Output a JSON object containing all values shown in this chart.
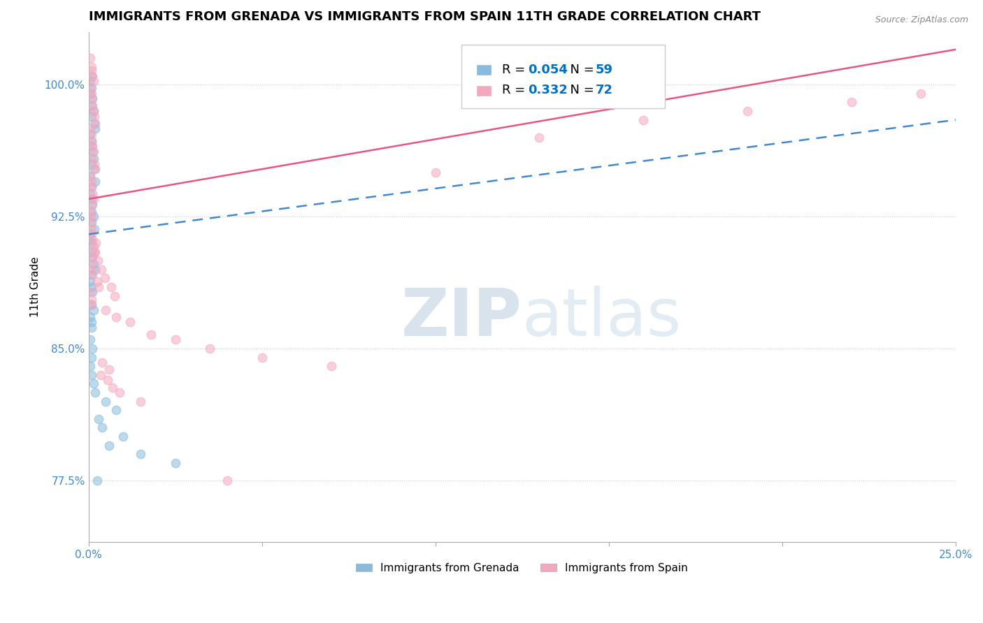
{
  "title": "IMMIGRANTS FROM GRENADA VS IMMIGRANTS FROM SPAIN 11TH GRADE CORRELATION CHART",
  "source_text": "Source: ZipAtlas.com",
  "ylabel": "11th Grade",
  "xlim": [
    0.0,
    25.0
  ],
  "ylim": [
    74.0,
    103.0
  ],
  "xticks": [
    0.0,
    5.0,
    10.0,
    15.0,
    20.0,
    25.0
  ],
  "xtick_labels": [
    "0.0%",
    "",
    "",
    "",
    "",
    "25.0%"
  ],
  "ytick_values": [
    77.5,
    85.0,
    92.5,
    100.0
  ],
  "ytick_labels": [
    "77.5%",
    "85.0%",
    "92.5%",
    "100.0%"
  ],
  "legend_entries": [
    {
      "label": "Immigrants from Grenada",
      "color": "#a8c8e8",
      "R": "0.054",
      "N": "59"
    },
    {
      "label": "Immigrants from Spain",
      "color": "#f4a8be",
      "R": "0.332",
      "N": "72"
    }
  ],
  "grenada_x": [
    0.05,
    0.08,
    0.1,
    0.05,
    0.12,
    0.08,
    0.15,
    0.1,
    0.18,
    0.2,
    0.05,
    0.08,
    0.1,
    0.12,
    0.15,
    0.08,
    0.18,
    0.05,
    0.2,
    0.1,
    0.05,
    0.08,
    0.12,
    0.1,
    0.15,
    0.08,
    0.18,
    0.05,
    0.05,
    0.08,
    0.1,
    0.12,
    0.15,
    0.2,
    0.08,
    0.05,
    0.1,
    0.12,
    0.08,
    0.15,
    0.05,
    0.1,
    0.08,
    0.05,
    0.12,
    0.08,
    0.05,
    0.1,
    0.15,
    0.2,
    0.5,
    0.8,
    0.3,
    0.4,
    1.0,
    0.6,
    1.5,
    2.5,
    0.25
  ],
  "grenada_y": [
    100.2,
    100.5,
    99.8,
    99.5,
    99.2,
    98.8,
    98.5,
    98.2,
    97.8,
    97.5,
    97.2,
    96.8,
    96.5,
    96.2,
    95.8,
    95.5,
    95.2,
    94.8,
    94.5,
    94.2,
    93.8,
    93.5,
    93.2,
    92.8,
    92.5,
    92.2,
    91.8,
    91.5,
    91.2,
    91.0,
    90.5,
    90.2,
    89.8,
    89.5,
    89.2,
    88.8,
    88.5,
    88.2,
    87.5,
    87.2,
    86.8,
    86.5,
    86.2,
    85.5,
    85.0,
    84.5,
    84.0,
    83.5,
    83.0,
    82.5,
    82.0,
    81.5,
    81.0,
    80.5,
    80.0,
    79.5,
    79.0,
    78.5,
    77.5
  ],
  "spain_x": [
    0.05,
    0.08,
    0.1,
    0.12,
    0.15,
    0.05,
    0.08,
    0.1,
    0.12,
    0.15,
    0.18,
    0.2,
    0.05,
    0.08,
    0.1,
    0.12,
    0.15,
    0.08,
    0.18,
    0.2,
    0.05,
    0.08,
    0.1,
    0.12,
    0.15,
    0.08,
    0.05,
    0.1,
    0.05,
    0.08,
    0.1,
    0.12,
    0.15,
    0.2,
    0.08,
    0.05,
    0.1,
    0.12,
    0.25,
    0.3,
    0.05,
    0.08,
    0.1,
    0.5,
    0.8,
    1.2,
    1.8,
    2.5,
    3.5,
    5.0,
    7.0,
    10.0,
    13.0,
    16.0,
    19.0,
    22.0,
    24.0,
    0.4,
    0.6,
    0.35,
    0.55,
    0.7,
    0.9,
    1.5,
    0.22,
    0.18,
    0.28,
    0.38,
    0.48,
    0.65,
    0.75,
    4.0
  ],
  "spain_y": [
    101.5,
    101.0,
    100.8,
    100.5,
    100.2,
    99.8,
    99.5,
    99.2,
    98.8,
    98.5,
    98.2,
    97.8,
    97.5,
    97.2,
    96.8,
    96.5,
    96.2,
    95.8,
    95.5,
    95.2,
    94.8,
    94.5,
    94.2,
    93.8,
    93.5,
    93.2,
    92.8,
    92.5,
    92.2,
    91.8,
    91.5,
    91.2,
    90.8,
    90.5,
    90.2,
    89.8,
    89.5,
    89.2,
    88.8,
    88.5,
    88.2,
    87.8,
    87.5,
    87.2,
    86.8,
    86.5,
    85.8,
    85.5,
    85.0,
    84.5,
    84.0,
    95.0,
    97.0,
    98.0,
    98.5,
    99.0,
    99.5,
    84.2,
    83.8,
    83.5,
    83.2,
    82.8,
    82.5,
    82.0,
    91.0,
    90.5,
    90.0,
    89.5,
    89.0,
    88.5,
    88.0,
    77.5
  ],
  "watermark_zip": "ZIP",
  "watermark_atlas": "atlas",
  "scatter_alpha": 0.55,
  "scatter_size": 80,
  "grenada_scatter_color": "#88bbdd",
  "spain_scatter_color": "#f4a8be",
  "grenada_line_color": "#4488cc",
  "spain_line_color": "#e85580",
  "background_color": "#ffffff",
  "title_fontsize": 13,
  "axis_label_fontsize": 11,
  "tick_fontsize": 11,
  "ytick_color": "#4488cc",
  "legend_R_color": "#0070c0",
  "legend_N_color": "#0070c0"
}
